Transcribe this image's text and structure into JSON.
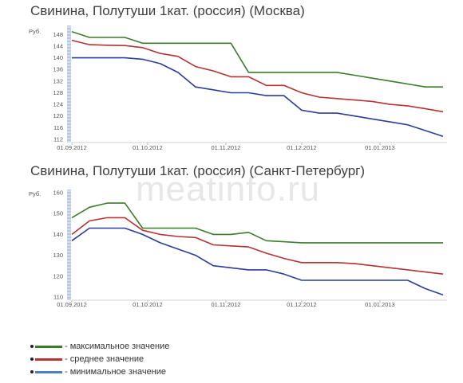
{
  "watermark": "meatinfo.ru",
  "chart_data": [
    {
      "type": "line",
      "title": "Свинина, Полутуши 1кат. (россия) (Москва)",
      "ylabel": "Руб.",
      "ylim": [
        112,
        150
      ],
      "yticks": [
        112,
        116,
        120,
        124,
        128,
        132,
        136,
        140,
        144,
        148
      ],
      "xtick_labels": [
        "01.09.2012",
        "01.10.2012",
        "01.11.2012",
        "01.12.2012",
        "01.01.2013"
      ],
      "xtick_pos": [
        0,
        30,
        61,
        91,
        122
      ],
      "x": [
        0,
        7,
        14,
        21,
        28,
        35,
        42,
        49,
        56,
        63,
        70,
        77,
        84,
        91,
        98,
        105,
        112,
        119,
        126,
        133,
        140,
        147
      ],
      "grid": false,
      "series": [
        {
          "name": "максимальное значение",
          "color": "#3a7d2a",
          "values": [
            149,
            147,
            147,
            147,
            145,
            145,
            145,
            145,
            145,
            145,
            135,
            135,
            135,
            135,
            135,
            135,
            134,
            133,
            132,
            131,
            130,
            130
          ]
        },
        {
          "name": "среднее значение",
          "color": "#b83232",
          "values": [
            146,
            144.5,
            144.3,
            144.2,
            143.5,
            141.5,
            140.5,
            137,
            135.5,
            133.5,
            133.5,
            130.5,
            130.5,
            128,
            126.5,
            126,
            125.5,
            125,
            124,
            123.5,
            122.5,
            121.5
          ]
        },
        {
          "name": "минимальное значение",
          "color": "#2a3d9a",
          "values": [
            140,
            140,
            140,
            140,
            139.5,
            138,
            135,
            130,
            129,
            128,
            128,
            127,
            127,
            122,
            121,
            121,
            120,
            119,
            118,
            117,
            115,
            113
          ]
        }
      ]
    },
    {
      "type": "line",
      "title": "Свинина, Полутуши 1кат. (россия) (Санкт-Петербург)",
      "ylabel": "Руб.",
      "ylim": [
        110,
        160
      ],
      "yticks": [
        110,
        120,
        130,
        140,
        150,
        160
      ],
      "xtick_labels": [
        "01.09.2012",
        "01.10.2012",
        "01.11.2012",
        "01.12.2012",
        "01.01.2013"
      ],
      "xtick_pos": [
        0,
        30,
        61,
        91,
        122
      ],
      "x": [
        0,
        7,
        14,
        21,
        28,
        35,
        42,
        49,
        56,
        63,
        70,
        77,
        84,
        91,
        98,
        105,
        112,
        119,
        126,
        133,
        140,
        147
      ],
      "grid": false,
      "series": [
        {
          "name": "максимальное значение",
          "color": "#3a7d2a",
          "values": [
            148,
            153,
            155,
            155,
            143,
            143,
            143,
            143,
            140,
            140,
            141,
            137,
            136.5,
            136,
            136,
            136,
            136,
            136,
            136,
            136,
            136,
            136
          ]
        },
        {
          "name": "среднее значение",
          "color": "#b83232",
          "values": [
            140,
            146.5,
            148,
            148,
            142,
            140,
            139,
            138.5,
            135,
            134.5,
            134,
            131,
            128.5,
            126.5,
            126.5,
            126.5,
            126,
            125,
            124,
            123,
            122,
            121
          ]
        },
        {
          "name": "минимальное значение",
          "color": "#2a3d9a",
          "values": [
            137,
            143,
            143,
            143,
            140,
            136,
            133,
            130,
            125,
            124,
            123,
            123,
            121,
            118,
            118,
            118,
            118,
            118,
            118,
            118,
            114,
            111
          ]
        }
      ]
    }
  ],
  "legend": [
    {
      "label": "- максимальное значение",
      "color": "#3a7d2a"
    },
    {
      "label": "- среднее значение",
      "color": "#b83232"
    },
    {
      "label": "- минимальное значение",
      "color": "#4a7fc0"
    }
  ]
}
